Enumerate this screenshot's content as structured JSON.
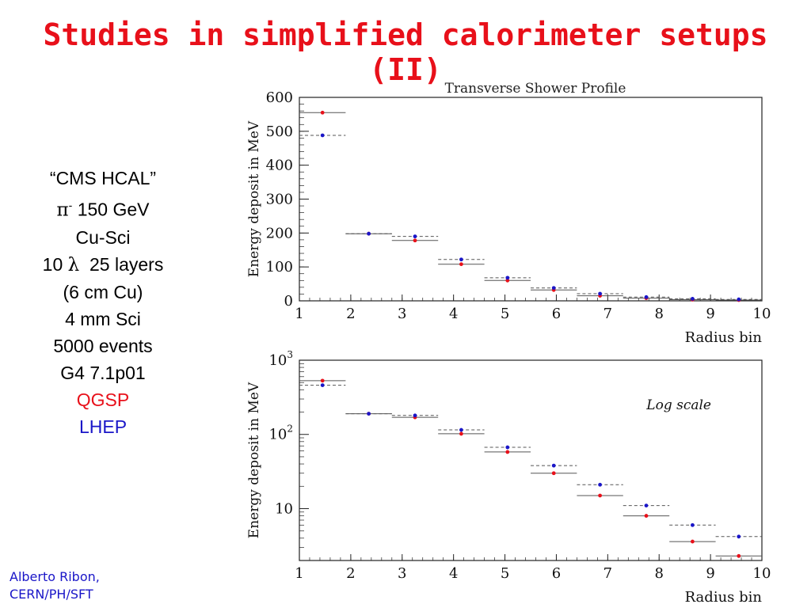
{
  "slide": {
    "title": "Studies in simplified calorimeter setups (II)",
    "info_lines": [
      "“CMS HCAL”",
      "150 GeV",
      "Cu-Sci",
      "25 layers",
      "(6 cm Cu)",
      "4 mm Sci",
      "5000 events",
      "G4 7.1p01"
    ],
    "pion_symbol": "π",
    "pion_charge": "-",
    "lambda_prefix": "10",
    "lambda_symbol": "λ",
    "legend_qgsp": "QGSP",
    "legend_lhep": "LHEP",
    "author_line1": "Alberto Ribon,",
    "author_line2": "CERN/PH/SFT",
    "colors": {
      "title": "#e8101a",
      "qgsp": "#e8101a",
      "lhep": "#1a16c8"
    }
  },
  "chart_data": [
    {
      "type": "scatter",
      "title": "Transverse Shower Profile",
      "xlabel": "Radius bin",
      "ylabel": "Energy deposit in MeV",
      "xlim": [
        1,
        10
      ],
      "ylim": [
        0,
        600
      ],
      "yscale": "linear",
      "x_ticks": [
        "1",
        "2",
        "3",
        "4",
        "5",
        "6",
        "7",
        "8",
        "9",
        "10"
      ],
      "y_ticks": [
        "0",
        "100",
        "200",
        "300",
        "400",
        "500",
        "600"
      ],
      "bins": [
        [
          1,
          1.9
        ],
        [
          1.9,
          2.8
        ],
        [
          2.8,
          3.7
        ],
        [
          3.7,
          4.6
        ],
        [
          4.6,
          5.5
        ],
        [
          5.5,
          6.4
        ],
        [
          6.4,
          7.3
        ],
        [
          7.3,
          8.2
        ],
        [
          8.2,
          9.1
        ],
        [
          9.1,
          10
        ]
      ],
      "series": [
        {
          "name": "QGSP",
          "color": "#e8101a",
          "values": [
            555,
            198,
            178,
            108,
            60,
            32,
            15,
            8,
            3.6,
            2.3
          ]
        },
        {
          "name": "LHEP",
          "color": "#1a16c8",
          "values": [
            488,
            198,
            190,
            122,
            68,
            38,
            21,
            11,
            6,
            4.2
          ]
        }
      ]
    },
    {
      "type": "scatter",
      "title": "",
      "xlabel": "Radius bin",
      "ylabel": "Energy deposit in MeV",
      "xlim": [
        1,
        10
      ],
      "ylim": [
        2,
        1000
      ],
      "yscale": "log",
      "annotation": "Log scale",
      "x_ticks": [
        "1",
        "2",
        "3",
        "4",
        "5",
        "6",
        "7",
        "8",
        "9",
        "10"
      ],
      "y_ticks": [
        {
          "value": 1000,
          "base": "10",
          "exp": "3"
        },
        {
          "value": 100,
          "base": "10",
          "exp": "2"
        },
        {
          "value": 10,
          "base": "10",
          "exp": ""
        }
      ],
      "bins": [
        [
          1,
          1.9
        ],
        [
          1.9,
          2.8
        ],
        [
          2.8,
          3.7
        ],
        [
          3.7,
          4.6
        ],
        [
          4.6,
          5.5
        ],
        [
          5.5,
          6.4
        ],
        [
          6.4,
          7.3
        ],
        [
          7.3,
          8.2
        ],
        [
          8.2,
          9.1
        ],
        [
          9.1,
          10
        ]
      ],
      "series": [
        {
          "name": "QGSP",
          "color": "#e8101a",
          "values": [
            530,
            190,
            170,
            102,
            58,
            30,
            15,
            8,
            3.6,
            2.3
          ]
        },
        {
          "name": "LHEP",
          "color": "#1a16c8",
          "values": [
            460,
            190,
            180,
            115,
            67,
            38,
            21,
            11,
            6,
            4.2
          ]
        }
      ]
    }
  ]
}
